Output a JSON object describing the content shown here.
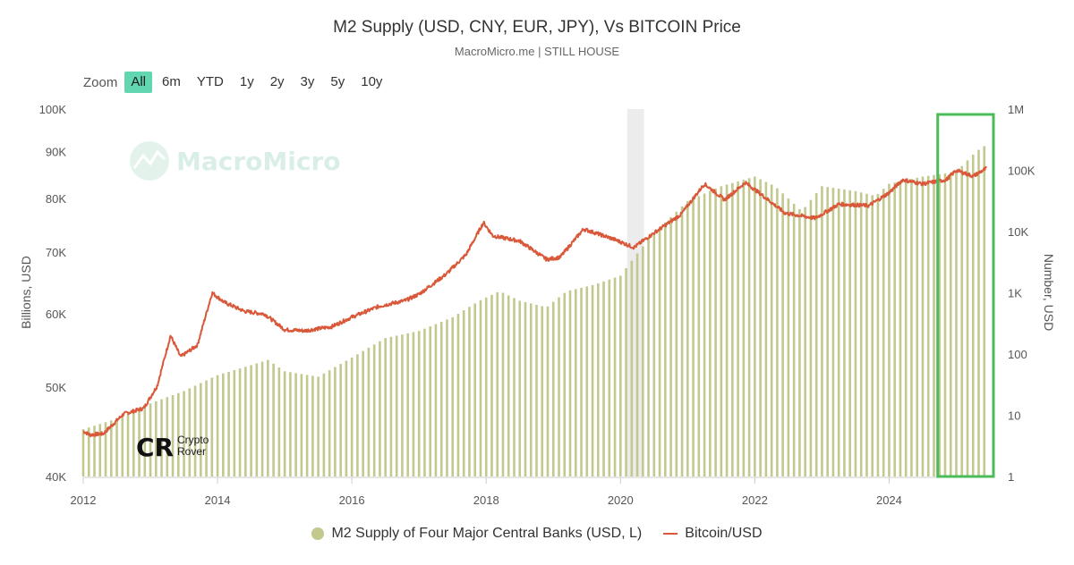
{
  "title": "M2 Supply (USD, CNY, EUR, JPY), Vs BITCOIN Price",
  "subtitle": "MacroMicro.me | STILL HOUSE",
  "zoom": {
    "label": "Zoom",
    "buttons": [
      "All",
      "6m",
      "YTD",
      "1y",
      "2y",
      "3y",
      "5y",
      "10y"
    ],
    "selected": "All"
  },
  "watermark": {
    "brand": "MacroMicro",
    "logo_top": "Crypto",
    "logo_bottom": "Rover"
  },
  "colors": {
    "bars": "#c3c88f",
    "line": "#d9583a",
    "highlight_box": "#4cbc5a",
    "zoom_active": "#62d6b0",
    "recession": "#ececec"
  },
  "legend": {
    "m2_label": "M2 Supply of Four Major Central Banks (USD, L)",
    "btc_label": "Bitcoin/USD"
  },
  "chart_data": {
    "type": "bar+line",
    "title": "M2 Supply (USD, CNY, EUR, JPY), Vs BITCOIN Price",
    "x_range": [
      2012.0,
      2025.5
    ],
    "x_ticks": [
      "2012",
      "2014",
      "2016",
      "2018",
      "2020",
      "2022",
      "2024"
    ],
    "left_axis": {
      "label": "Billions, USD",
      "scale": "log",
      "range": [
        40000,
        100000
      ],
      "ticks": [
        "40K",
        "50K",
        "60K",
        "70K",
        "80K",
        "90K",
        "100K"
      ],
      "tick_values": [
        40000,
        50000,
        60000,
        70000,
        80000,
        90000,
        100000
      ]
    },
    "right_axis": {
      "label": "Number, USD",
      "scale": "log",
      "range": [
        1,
        1000000
      ],
      "ticks": [
        "1",
        "10",
        "100",
        "1K",
        "10K",
        "100K",
        "1M"
      ],
      "tick_values": [
        1,
        10,
        100,
        1000,
        10000,
        100000,
        1000000
      ]
    },
    "shaded_period": [
      2020.1,
      2020.35
    ],
    "highlight_range": [
      2024.75,
      2025.5
    ],
    "series": [
      {
        "name": "M2 Supply of Four Major Central Banks (USD, L)",
        "type": "bar",
        "axis": "left",
        "points": [
          [
            2012.0,
            45000
          ],
          [
            2012.5,
            46200
          ],
          [
            2013.0,
            48000
          ],
          [
            2013.5,
            49500
          ],
          [
            2014.0,
            51500
          ],
          [
            2014.5,
            52800
          ],
          [
            2014.75,
            53500
          ],
          [
            2015.0,
            52000
          ],
          [
            2015.5,
            51300
          ],
          [
            2016.0,
            53800
          ],
          [
            2016.5,
            56500
          ],
          [
            2017.0,
            57500
          ],
          [
            2017.5,
            59500
          ],
          [
            2017.9,
            62000
          ],
          [
            2018.2,
            63500
          ],
          [
            2018.5,
            62000
          ],
          [
            2018.9,
            61000
          ],
          [
            2019.2,
            63500
          ],
          [
            2019.6,
            64500
          ],
          [
            2020.0,
            66000
          ],
          [
            2020.4,
            72000
          ],
          [
            2021.0,
            79500
          ],
          [
            2021.5,
            82500
          ],
          [
            2022.0,
            84500
          ],
          [
            2022.3,
            82500
          ],
          [
            2022.7,
            77500
          ],
          [
            2023.0,
            82500
          ],
          [
            2023.5,
            81500
          ],
          [
            2023.8,
            80500
          ],
          [
            2024.0,
            83000
          ],
          [
            2024.5,
            84500
          ],
          [
            2024.75,
            85000
          ],
          [
            2025.0,
            85500
          ],
          [
            2025.3,
            90000
          ],
          [
            2025.45,
            91500
          ]
        ]
      },
      {
        "name": "Bitcoin/USD",
        "type": "line",
        "axis": "right",
        "points": [
          [
            2012.0,
            5.5
          ],
          [
            2012.1,
            4.8
          ],
          [
            2012.3,
            5.0
          ],
          [
            2012.6,
            10.5
          ],
          [
            2012.9,
            13.0
          ],
          [
            2013.1,
            30
          ],
          [
            2013.3,
            200
          ],
          [
            2013.45,
            90
          ],
          [
            2013.7,
            140
          ],
          [
            2013.92,
            1000
          ],
          [
            2014.1,
            700
          ],
          [
            2014.4,
            500
          ],
          [
            2014.7,
            450
          ],
          [
            2015.0,
            250
          ],
          [
            2015.3,
            240
          ],
          [
            2015.7,
            280
          ],
          [
            2016.0,
            400
          ],
          [
            2016.4,
            600
          ],
          [
            2016.8,
            750
          ],
          [
            2017.0,
            950
          ],
          [
            2017.4,
            2000
          ],
          [
            2017.7,
            4200
          ],
          [
            2017.96,
            14000
          ],
          [
            2018.1,
            8500
          ],
          [
            2018.5,
            7000
          ],
          [
            2018.9,
            3500
          ],
          [
            2019.1,
            3800
          ],
          [
            2019.45,
            11000
          ],
          [
            2019.9,
            7500
          ],
          [
            2020.2,
            5500
          ],
          [
            2020.5,
            9500
          ],
          [
            2020.9,
            19000
          ],
          [
            2021.25,
            60000
          ],
          [
            2021.55,
            33000
          ],
          [
            2021.86,
            63000
          ],
          [
            2022.1,
            40000
          ],
          [
            2022.45,
            20000
          ],
          [
            2022.9,
            16500
          ],
          [
            2023.25,
            28000
          ],
          [
            2023.7,
            26500
          ],
          [
            2024.0,
            43000
          ],
          [
            2024.2,
            70000
          ],
          [
            2024.5,
            60000
          ],
          [
            2024.85,
            70000
          ],
          [
            2025.0,
            100000
          ],
          [
            2025.25,
            80000
          ],
          [
            2025.45,
            108000
          ]
        ]
      }
    ]
  }
}
